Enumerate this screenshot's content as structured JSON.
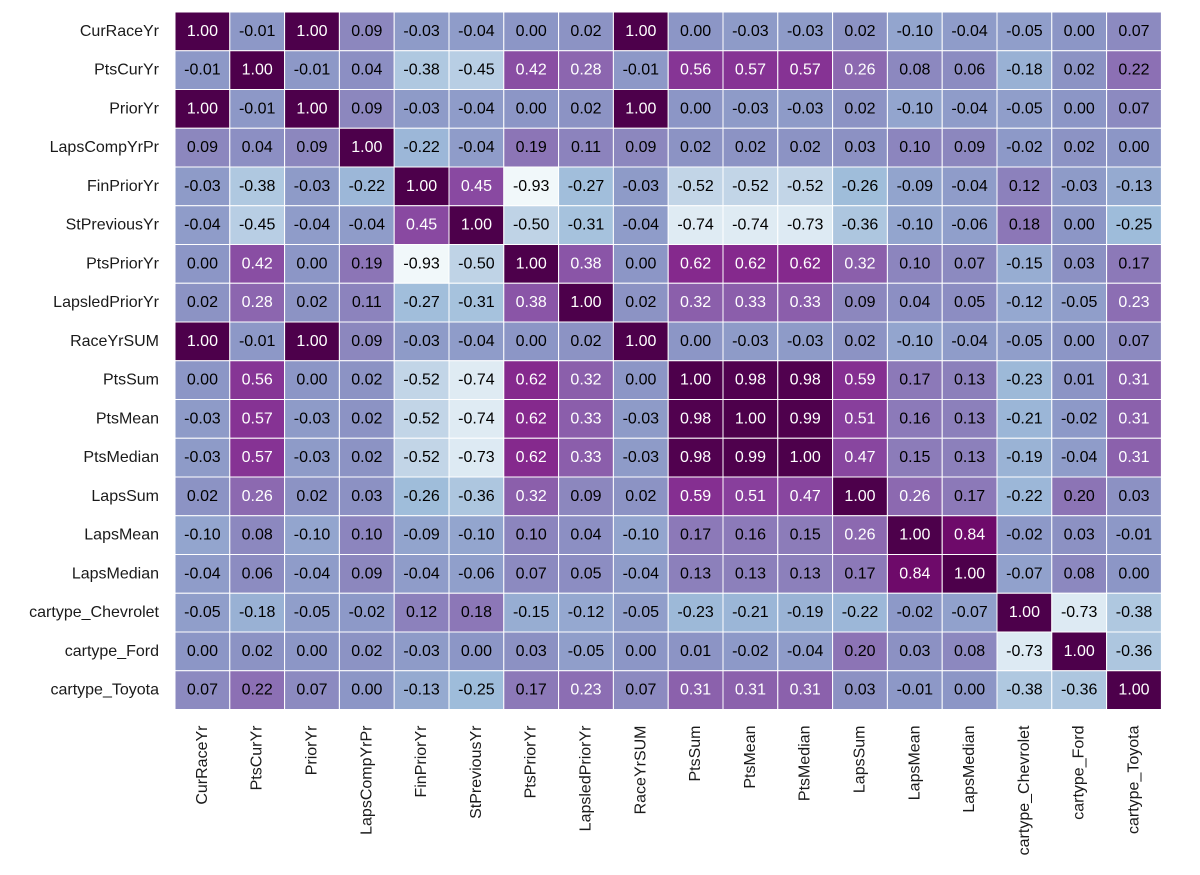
{
  "chart_data": {
    "type": "heatmap",
    "title": "",
    "xlabel": "",
    "ylabel": "",
    "colormap": "BuPu",
    "vmin": -1.0,
    "vmax": 1.0,
    "grid": false,
    "colorbar": false,
    "rows": [
      "CurRaceYr",
      "PtsCurYr",
      "PriorYr",
      "LapsCompYrPr",
      "FinPriorYr",
      "StPreviousYr",
      "PtsPriorYr",
      "LapsledPriorYr",
      "RaceYrSUM",
      "PtsSum",
      "PtsMean",
      "PtsMedian",
      "LapsSum",
      "LapsMean",
      "LapsMedian",
      "cartype_Chevrolet",
      "cartype_Ford",
      "cartype_Toyota"
    ],
    "columns": [
      "CurRaceYr",
      "PtsCurYr",
      "PriorYr",
      "LapsCompYrPr",
      "FinPriorYr",
      "StPreviousYr",
      "PtsPriorYr",
      "LapsledPriorYr",
      "RaceYrSUM",
      "PtsSum",
      "PtsMean",
      "PtsMedian",
      "LapsSum",
      "LapsMean",
      "LapsMedian",
      "cartype_Chevrolet",
      "cartype_Ford",
      "cartype_Toyota"
    ],
    "values": [
      [
        1.0,
        -0.01,
        1.0,
        0.09,
        -0.03,
        -0.04,
        -0.0,
        0.02,
        1.0,
        -0.0,
        -0.03,
        -0.03,
        0.02,
        -0.1,
        -0.04,
        -0.05,
        -0.0,
        0.07
      ],
      [
        -0.01,
        1.0,
        -0.01,
        0.04,
        -0.38,
        -0.45,
        0.42,
        0.28,
        -0.01,
        0.56,
        0.57,
        0.57,
        0.26,
        0.08,
        0.06,
        -0.18,
        0.02,
        0.22
      ],
      [
        1.0,
        -0.01,
        1.0,
        0.09,
        -0.03,
        -0.04,
        -0.0,
        0.02,
        1.0,
        -0.0,
        -0.03,
        -0.03,
        0.02,
        -0.1,
        -0.04,
        -0.05,
        -0.0,
        0.07
      ],
      [
        0.09,
        0.04,
        0.09,
        1.0,
        -0.22,
        -0.04,
        0.19,
        0.11,
        0.09,
        0.02,
        0.02,
        0.02,
        0.03,
        0.1,
        0.09,
        -0.02,
        0.02,
        0.0
      ],
      [
        -0.03,
        -0.38,
        -0.03,
        -0.22,
        1.0,
        0.45,
        -0.93,
        -0.27,
        -0.03,
        -0.52,
        -0.52,
        -0.52,
        -0.26,
        -0.09,
        -0.04,
        0.12,
        -0.03,
        -0.13
      ],
      [
        -0.04,
        -0.45,
        -0.04,
        -0.04,
        0.45,
        1.0,
        -0.5,
        -0.31,
        -0.04,
        -0.74,
        -0.74,
        -0.73,
        -0.36,
        -0.1,
        -0.06,
        0.18,
        0.0,
        -0.25
      ],
      [
        -0.0,
        0.42,
        -0.0,
        0.19,
        -0.93,
        -0.5,
        1.0,
        0.38,
        -0.0,
        0.62,
        0.62,
        0.62,
        0.32,
        0.1,
        0.07,
        -0.15,
        0.03,
        0.17
      ],
      [
        0.02,
        0.28,
        0.02,
        0.11,
        -0.27,
        -0.31,
        0.38,
        1.0,
        0.02,
        0.32,
        0.33,
        0.33,
        0.09,
        0.04,
        0.05,
        -0.12,
        -0.05,
        0.23
      ],
      [
        1.0,
        -0.01,
        1.0,
        0.09,
        -0.03,
        -0.04,
        -0.0,
        0.02,
        1.0,
        -0.0,
        -0.03,
        -0.03,
        0.02,
        -0.1,
        -0.04,
        -0.05,
        -0.0,
        0.07
      ],
      [
        -0.0,
        0.56,
        -0.0,
        0.02,
        -0.52,
        -0.74,
        0.62,
        0.32,
        -0.0,
        1.0,
        0.98,
        0.98,
        0.59,
        0.17,
        0.13,
        -0.23,
        0.01,
        0.31
      ],
      [
        -0.03,
        0.57,
        -0.03,
        0.02,
        -0.52,
        -0.74,
        0.62,
        0.33,
        -0.03,
        0.98,
        1.0,
        0.99,
        0.51,
        0.16,
        0.13,
        -0.21,
        -0.02,
        0.31
      ],
      [
        -0.03,
        0.57,
        -0.03,
        0.02,
        -0.52,
        -0.73,
        0.62,
        0.33,
        -0.03,
        0.98,
        0.99,
        1.0,
        0.47,
        0.15,
        0.13,
        -0.19,
        -0.04,
        0.31
      ],
      [
        0.02,
        0.26,
        0.02,
        0.03,
        -0.26,
        -0.36,
        0.32,
        0.09,
        0.02,
        0.59,
        0.51,
        0.47,
        1.0,
        0.26,
        0.17,
        -0.22,
        0.2,
        0.03
      ],
      [
        -0.1,
        0.08,
        -0.1,
        0.1,
        -0.09,
        -0.1,
        0.1,
        0.04,
        -0.1,
        0.17,
        0.16,
        0.15,
        0.26,
        1.0,
        0.84,
        -0.02,
        0.03,
        -0.01
      ],
      [
        -0.04,
        0.06,
        -0.04,
        0.09,
        -0.04,
        -0.06,
        0.07,
        0.05,
        -0.04,
        0.13,
        0.13,
        0.13,
        0.17,
        0.84,
        1.0,
        -0.07,
        0.08,
        -0.0
      ],
      [
        -0.05,
        -0.18,
        -0.05,
        -0.02,
        0.12,
        0.18,
        -0.15,
        -0.12,
        -0.05,
        -0.23,
        -0.21,
        -0.19,
        -0.22,
        -0.02,
        -0.07,
        1.0,
        -0.73,
        -0.38
      ],
      [
        -0.0,
        0.02,
        -0.0,
        0.02,
        -0.03,
        0.0,
        0.03,
        -0.05,
        -0.0,
        0.01,
        -0.02,
        -0.04,
        0.2,
        0.03,
        0.08,
        -0.73,
        1.0,
        -0.36
      ],
      [
        0.07,
        0.22,
        0.07,
        0.0,
        -0.13,
        -0.25,
        0.17,
        0.23,
        0.07,
        0.31,
        0.31,
        0.31,
        0.03,
        -0.01,
        -0.0,
        -0.38,
        -0.36,
        1.0
      ]
    ],
    "colors": {
      "scale": [
        "#f7fcfd",
        "#e0ecf4",
        "#bfd3e6",
        "#9ebcda",
        "#8c96c6",
        "#8c6bb1",
        "#88419d",
        "#810f7c",
        "#4d004b"
      ],
      "text_light": "#ffffff",
      "text_dark": "#000000",
      "cell_border": "#ffffff"
    }
  }
}
